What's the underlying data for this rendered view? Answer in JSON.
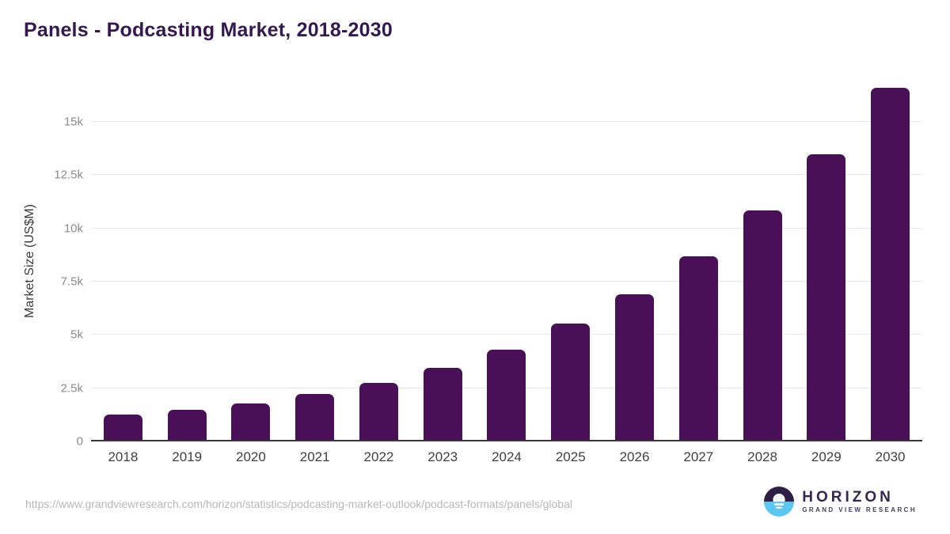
{
  "title": "Panels - Podcasting Market, 2018-2030",
  "source": {
    "url": "https://www.grandviewresearch.com/horizon/statistics/podcasting-market-outlook/podcast-formats/panels/global"
  },
  "logo": {
    "name": "HORIZON",
    "subtitle": "GRAND VIEW RESEARCH"
  },
  "colors": {
    "bar": "#4a1057",
    "title": "#33194f",
    "gridline": "#e8e8e8",
    "baseline": "#383838",
    "ytick": "#8b8b8b",
    "xtick": "#3f3f3f",
    "logo_top": "#2e2044",
    "logo_bottom": "#5cc6f0"
  },
  "chart_data": {
    "type": "bar",
    "title": "Panels - Podcasting Market, 2018-2030",
    "xlabel": "",
    "ylabel": "Market Size (US$M)",
    "categories": [
      "2018",
      "2019",
      "2020",
      "2021",
      "2022",
      "2023",
      "2024",
      "2025",
      "2026",
      "2027",
      "2028",
      "2029",
      "2030"
    ],
    "values": [
      1260,
      1470,
      1780,
      2210,
      2750,
      3450,
      4320,
      5530,
      6910,
      8700,
      10850,
      13460,
      16600
    ],
    "ylim": [
      0,
      17000
    ],
    "ytick_values": [
      0,
      2500,
      5000,
      7500,
      10000,
      12500,
      15000
    ],
    "ytick_labels": [
      "0",
      "2.5k",
      "5k",
      "7.5k",
      "10k",
      "12.5k",
      "15k"
    ],
    "grid": true,
    "legend": false,
    "bar_color": "#4a1057"
  }
}
